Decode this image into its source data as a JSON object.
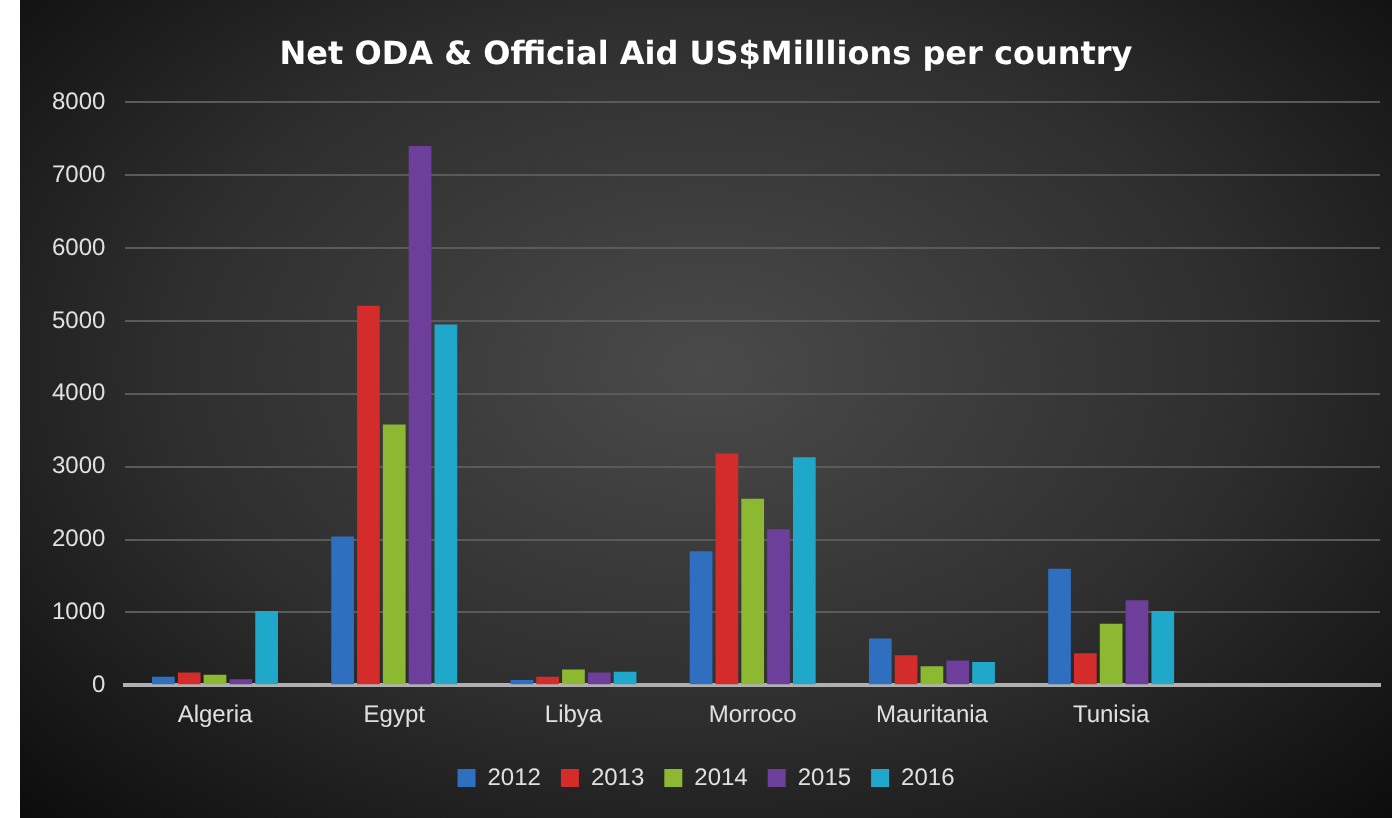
{
  "chart_data": {
    "type": "bar",
    "title": "Net ODA & Official Aid US$Milllions per country",
    "categories": [
      "Algeria",
      "Egypt",
      "Libya",
      "Morroco",
      "Mauritania",
      "Tunisia",
      null
    ],
    "series": [
      {
        "name": "2012",
        "color": "#2e6fbf",
        "values": [
          115,
          2040,
          70,
          1840,
          640,
          1600,
          null
        ]
      },
      {
        "name": "2013",
        "color": "#d42b2b",
        "values": [
          175,
          5210,
          115,
          3180,
          410,
          440,
          null
        ]
      },
      {
        "name": "2014",
        "color": "#8db832",
        "values": [
          145,
          3580,
          215,
          2560,
          260,
          845,
          null
        ]
      },
      {
        "name": "2015",
        "color": "#6e3f9a",
        "values": [
          80,
          7400,
          175,
          2140,
          340,
          1165,
          null
        ]
      },
      {
        "name": "2016",
        "color": "#1fa8c9",
        "values": [
          1020,
          4950,
          185,
          3130,
          320,
          1020,
          null
        ]
      }
    ],
    "ylim": [
      0,
      8000
    ],
    "yticks": [
      0,
      1000,
      2000,
      3000,
      4000,
      5000,
      6000,
      7000,
      8000
    ],
    "grid": "y",
    "legend": "bottom"
  }
}
